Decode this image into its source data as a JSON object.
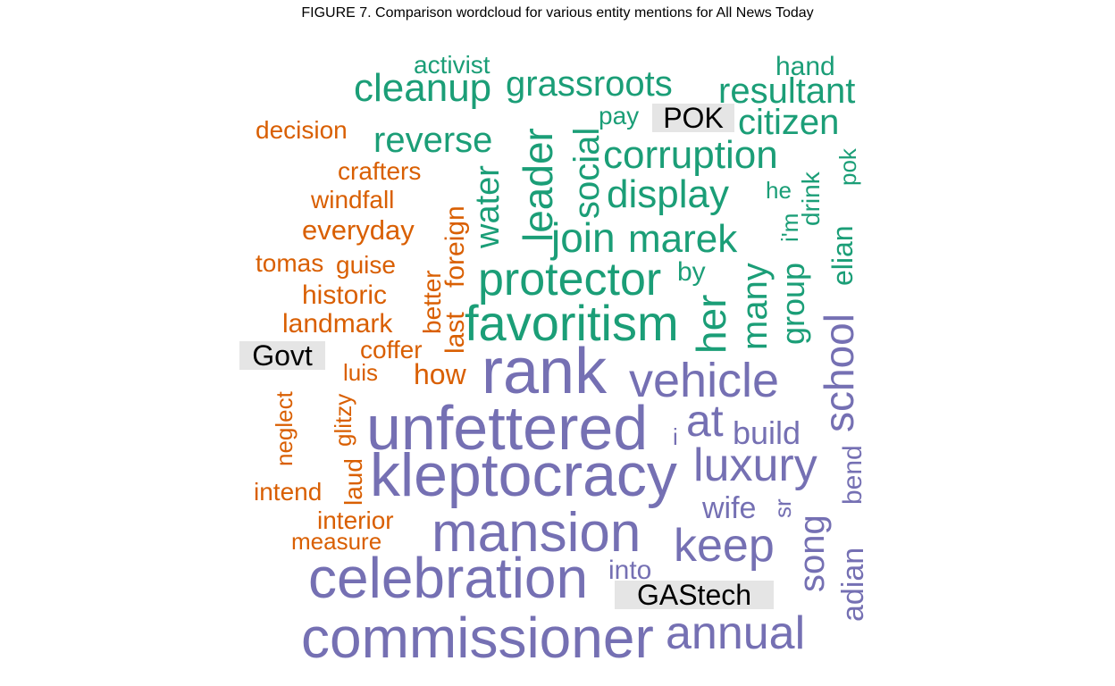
{
  "chart_data": {
    "type": "comparison_wordcloud",
    "title": "FIGURE 7. Comparison wordcloud for various entity mentions for All News Today",
    "groups": [
      {
        "name": "Govt",
        "color": "#d95f02"
      },
      {
        "name": "POK",
        "color": "#1b9e77"
      },
      {
        "name": "GAStech",
        "color": "#7570b3"
      }
    ],
    "words": [
      {
        "text": "decision",
        "group": "Govt",
        "weight": 28
      },
      {
        "text": "crafters",
        "group": "Govt",
        "weight": 28
      },
      {
        "text": "windfall",
        "group": "Govt",
        "weight": 28
      },
      {
        "text": "everyday",
        "group": "Govt",
        "weight": 31
      },
      {
        "text": "tomas",
        "group": "Govt",
        "weight": 28
      },
      {
        "text": "guise",
        "group": "Govt",
        "weight": 28
      },
      {
        "text": "historic",
        "group": "Govt",
        "weight": 30
      },
      {
        "text": "landmark",
        "group": "Govt",
        "weight": 30
      },
      {
        "text": "coffer",
        "group": "Govt",
        "weight": 28
      },
      {
        "text": "luis",
        "group": "Govt",
        "weight": 26
      },
      {
        "text": "how",
        "group": "Govt",
        "weight": 32
      },
      {
        "text": "neglect",
        "group": "Govt",
        "weight": 26
      },
      {
        "text": "glitzy",
        "group": "Govt",
        "weight": 26
      },
      {
        "text": "laud",
        "group": "Govt",
        "weight": 28
      },
      {
        "text": "intend",
        "group": "Govt",
        "weight": 28
      },
      {
        "text": "interior",
        "group": "Govt",
        "weight": 28
      },
      {
        "text": "measure",
        "group": "Govt",
        "weight": 26
      },
      {
        "text": "better",
        "group": "Govt",
        "weight": 28
      },
      {
        "text": "last",
        "group": "Govt",
        "weight": 30
      },
      {
        "text": "foreign",
        "group": "Govt",
        "weight": 30
      },
      {
        "text": "activist",
        "group": "POK",
        "weight": 28
      },
      {
        "text": "cleanup",
        "group": "POK",
        "weight": 44
      },
      {
        "text": "grassroots",
        "group": "POK",
        "weight": 40
      },
      {
        "text": "hand",
        "group": "POK",
        "weight": 30
      },
      {
        "text": "resultant",
        "group": "POK",
        "weight": 40
      },
      {
        "text": "reverse",
        "group": "POK",
        "weight": 40
      },
      {
        "text": "pay",
        "group": "POK",
        "weight": 28
      },
      {
        "text": "citizen",
        "group": "POK",
        "weight": 40
      },
      {
        "text": "corruption",
        "group": "POK",
        "weight": 44
      },
      {
        "text": "display",
        "group": "POK",
        "weight": 44
      },
      {
        "text": "join",
        "group": "POK",
        "weight": 46
      },
      {
        "text": "marek",
        "group": "POK",
        "weight": 44
      },
      {
        "text": "protector",
        "group": "POK",
        "weight": 52
      },
      {
        "text": "favoritism",
        "group": "POK",
        "weight": 56
      },
      {
        "text": "leader",
        "group": "POK",
        "weight": 46
      },
      {
        "text": "social",
        "group": "POK",
        "weight": 40
      },
      {
        "text": "water",
        "group": "POK",
        "weight": 38
      },
      {
        "text": "her",
        "group": "POK",
        "weight": 46
      },
      {
        "text": "many",
        "group": "POK",
        "weight": 40
      },
      {
        "text": "group",
        "group": "POK",
        "weight": 36
      },
      {
        "text": "by",
        "group": "POK",
        "weight": 30
      },
      {
        "text": "he",
        "group": "POK",
        "weight": 26
      },
      {
        "text": "i'm",
        "group": "POK",
        "weight": 26
      },
      {
        "text": "drink",
        "group": "POK",
        "weight": 28
      },
      {
        "text": "pok",
        "group": "POK",
        "weight": 26
      },
      {
        "text": "elian",
        "group": "POK",
        "weight": 32
      },
      {
        "text": "rank",
        "group": "GAStech",
        "weight": 72
      },
      {
        "text": "vehicle",
        "group": "GAStech",
        "weight": 54
      },
      {
        "text": "school",
        "group": "GAStech",
        "weight": 46
      },
      {
        "text": "unfettered",
        "group": "GAStech",
        "weight": 70
      },
      {
        "text": "at",
        "group": "GAStech",
        "weight": 50
      },
      {
        "text": "i",
        "group": "GAStech",
        "weight": 26
      },
      {
        "text": "build",
        "group": "GAStech",
        "weight": 36
      },
      {
        "text": "kleptocracy",
        "group": "GAStech",
        "weight": 68
      },
      {
        "text": "luxury",
        "group": "GAStech",
        "weight": 52
      },
      {
        "text": "bend",
        "group": "GAStech",
        "weight": 30
      },
      {
        "text": "wife",
        "group": "GAStech",
        "weight": 34
      },
      {
        "text": "sr",
        "group": "GAStech",
        "weight": 26
      },
      {
        "text": "song",
        "group": "GAStech",
        "weight": 40
      },
      {
        "text": "mansion",
        "group": "GAStech",
        "weight": 62
      },
      {
        "text": "keep",
        "group": "GAStech",
        "weight": 52
      },
      {
        "text": "adian",
        "group": "GAStech",
        "weight": 34
      },
      {
        "text": "celebration",
        "group": "GAStech",
        "weight": 64
      },
      {
        "text": "into",
        "group": "GAStech",
        "weight": 30
      },
      {
        "text": "commissioner",
        "group": "GAStech",
        "weight": 64
      },
      {
        "text": "annual",
        "group": "GAStech",
        "weight": 52
      }
    ]
  }
}
